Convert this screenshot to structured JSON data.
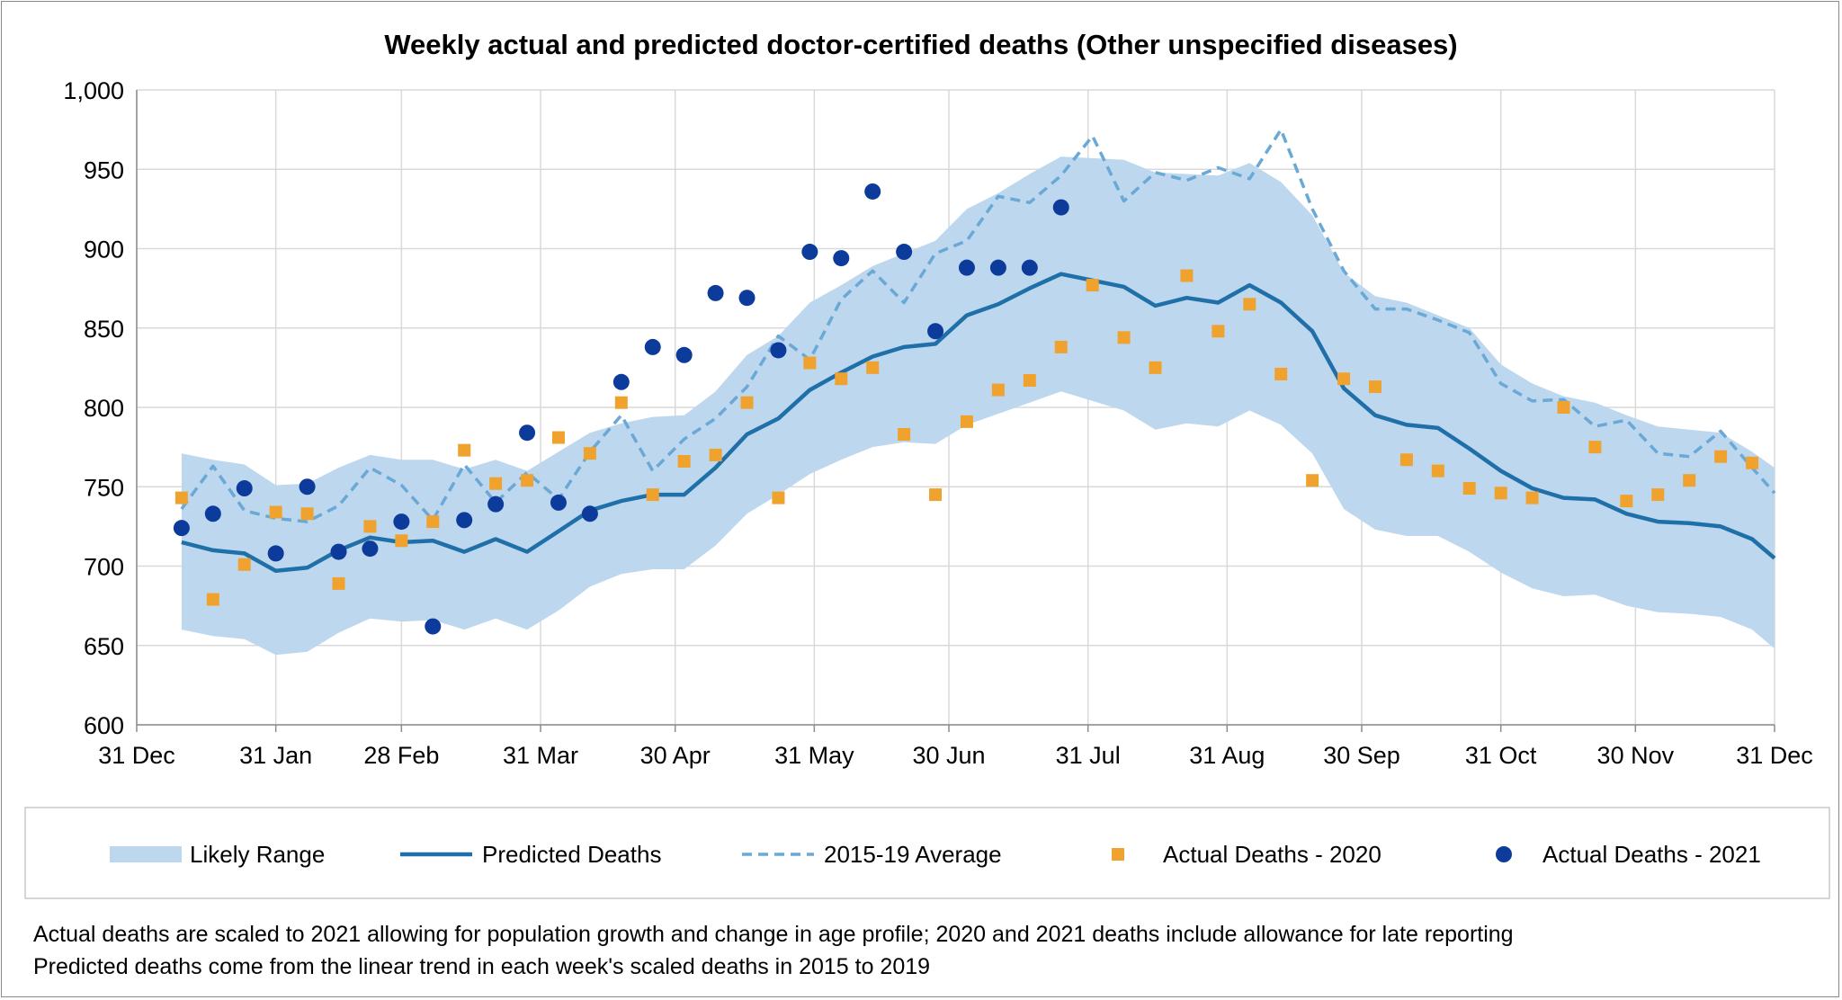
{
  "chart_data": {
    "type": "line",
    "title": "Weekly actual and predicted doctor-certified deaths (Other unspecified diseases)",
    "xlabel": "",
    "ylabel": "",
    "ylim": [
      600,
      1000
    ],
    "xlim": [
      0,
      365
    ],
    "yticks": [
      600,
      650,
      700,
      750,
      800,
      850,
      900,
      950,
      1000
    ],
    "ytick_labels": [
      "600",
      "650",
      "700",
      "750",
      "800",
      "850",
      "900",
      "950",
      "1,000"
    ],
    "xticks": [
      0,
      31,
      59,
      90,
      120,
      151,
      181,
      212,
      243,
      273,
      304,
      334,
      365
    ],
    "xtick_labels": [
      "31 Dec",
      "31 Jan",
      "28 Feb",
      "31 Mar",
      "30 Apr",
      "31 May",
      "30 Jun",
      "31 Jul",
      "31 Aug",
      "30 Sep",
      "31 Oct",
      "30 Nov",
      "31 Dec"
    ],
    "grid": true,
    "week_days": [
      10,
      17,
      24,
      31,
      38,
      45,
      52,
      59,
      66,
      73,
      80,
      87,
      94,
      101,
      108,
      115,
      122,
      129,
      136,
      143,
      150,
      157,
      164,
      171,
      178,
      185,
      192,
      199,
      206,
      213,
      220,
      227,
      234,
      241,
      248,
      255,
      262,
      269,
      276,
      283,
      290,
      297,
      304,
      311,
      318,
      325,
      332,
      339,
      346,
      353,
      360,
      365
    ],
    "series": [
      {
        "name": "Likely Range",
        "kind": "band",
        "color": "#bdd7ee",
        "upper": [
          771,
          767,
          764,
          751,
          752,
          762,
          770,
          767,
          767,
          761,
          767,
          760,
          772,
          784,
          790,
          794,
          795,
          810,
          833,
          845,
          866,
          877,
          889,
          897,
          905,
          925,
          935,
          947,
          958,
          957,
          956,
          948,
          947,
          946,
          954,
          942,
          921,
          885,
          870,
          866,
          858,
          850,
          827,
          815,
          807,
          803,
          795,
          788,
          786,
          784,
          772,
          762
        ],
        "lower": [
          660,
          656,
          654,
          644,
          646,
          658,
          667,
          665,
          666,
          660,
          667,
          660,
          672,
          687,
          695,
          698,
          698,
          713,
          733,
          745,
          758,
          767,
          775,
          778,
          777,
          789,
          796,
          803,
          810,
          804,
          798,
          786,
          790,
          788,
          798,
          789,
          771,
          736,
          723,
          719,
          719,
          709,
          696,
          686,
          681,
          682,
          675,
          671,
          670,
          668,
          660,
          648
        ]
      },
      {
        "name": "Predicted Deaths",
        "kind": "line",
        "color": "#1f6fa8",
        "values": [
          715,
          710,
          708,
          697,
          699,
          710,
          718,
          715,
          716,
          709,
          717,
          709,
          722,
          735,
          741,
          745,
          745,
          762,
          783,
          793,
          811,
          822,
          832,
          838,
          840,
          858,
          865,
          875,
          884,
          880,
          876,
          864,
          869,
          866,
          877,
          866,
          848,
          812,
          795,
          789,
          787,
          774,
          760,
          749,
          743,
          742,
          733,
          728,
          727,
          725,
          717,
          705
        ]
      },
      {
        "name": "2015-19 Average",
        "kind": "dashed-line",
        "color": "#6aa8d6",
        "values": [
          736,
          763,
          735,
          730,
          728,
          738,
          762,
          751,
          729,
          764,
          740,
          759,
          742,
          772,
          795,
          760,
          780,
          793,
          813,
          845,
          830,
          868,
          886,
          866,
          897,
          905,
          933,
          929,
          946,
          971,
          930,
          948,
          943,
          951,
          944,
          975,
          925,
          886,
          862,
          862,
          855,
          847,
          815,
          804,
          805,
          788,
          792,
          771,
          769,
          785,
          762,
          746
        ]
      },
      {
        "name": "Actual Deaths - 2020",
        "kind": "markers-square",
        "color": "#f0a22e",
        "values": [
          743,
          679,
          701,
          734,
          733,
          689,
          725,
          716,
          728,
          773,
          752,
          754,
          781,
          771,
          803,
          745,
          766,
          770,
          803,
          743,
          828,
          818,
          825,
          783,
          745,
          791,
          811,
          817,
          838,
          877,
          844,
          825,
          883,
          848,
          865,
          821,
          754,
          818,
          813,
          767,
          760,
          749,
          746,
          743,
          800,
          775,
          741,
          745,
          754,
          769,
          765,
          null
        ]
      },
      {
        "name": "Actual Deaths - 2021",
        "kind": "markers-circle",
        "color": "#0d3b9c",
        "values": [
          724,
          733,
          749,
          708,
          750,
          709,
          711,
          728,
          662,
          729,
          739,
          784,
          740,
          733,
          816,
          838,
          833,
          872,
          869,
          836,
          898,
          894,
          936,
          898,
          848,
          888,
          888,
          888,
          926,
          null,
          null,
          null,
          null,
          null,
          null,
          null,
          null,
          null,
          null,
          null,
          null,
          null,
          null,
          null,
          null,
          null,
          null,
          null,
          null,
          null,
          null,
          null
        ]
      }
    ],
    "legend": {
      "placement": "bottom",
      "entries": [
        "Likely Range",
        "Predicted Deaths",
        "2015-19 Average",
        "Actual Deaths - 2020",
        "Actual Deaths - 2021"
      ]
    }
  },
  "notes": [
    "Actual deaths are scaled to 2021 allowing for population growth and change in age profile; 2020 and 2021 deaths include allowance for late reporting",
    "Predicted deaths come from the linear trend in each week's scaled deaths in 2015 to 2019"
  ]
}
